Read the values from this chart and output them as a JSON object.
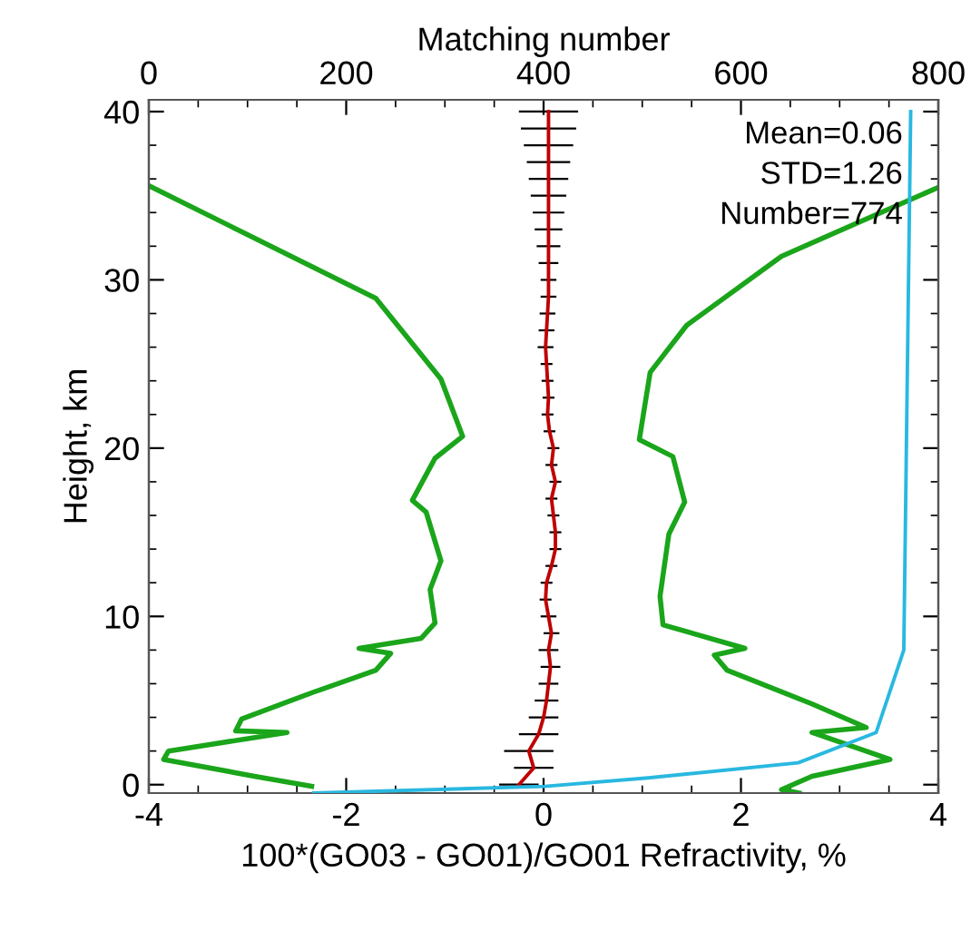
{
  "chart_data": {
    "type": "line",
    "xlabel": "100*(GO03 - GO01)/GO01 Refractivity, %",
    "ylabel": "Height, km",
    "x2label": "Matching number",
    "xlim": [
      -4,
      4
    ],
    "xticks": [
      -4,
      -2,
      0,
      2,
      4
    ],
    "ylim": [
      -0.5,
      40.7
    ],
    "yticks": [
      0,
      10,
      20,
      30,
      40
    ],
    "x2lim": [
      0,
      800
    ],
    "x2ticks": [
      0,
      200,
      400,
      600,
      800
    ],
    "annotations": [
      "Mean=0.06",
      "STD=1.26",
      "Number=774"
    ],
    "series": [
      {
        "color": "#1aa51a",
        "x": [
          -2.35,
          -2.93,
          -3.85,
          -3.8,
          -2.6,
          -3.12,
          -3.06,
          -2.33,
          -1.7,
          -1.55,
          -1.87,
          -1.24,
          -1.1,
          -1.15,
          -1.04,
          -1.19,
          -1.33,
          -1.1,
          -0.82,
          -1.04,
          -1.7,
          -4.0
        ],
        "values": [
          -0.1,
          0.5,
          1.5,
          2.0,
          3.1,
          3.2,
          3.9,
          5.5,
          6.8,
          7.8,
          8.1,
          8.7,
          9.6,
          11.6,
          13.3,
          16.2,
          16.9,
          19.4,
          20.7,
          24.1,
          28.9,
          35.6
        ]
      },
      {
        "color": "#1aa51a",
        "x": [
          2.59,
          2.41,
          2.72,
          3.51,
          2.72,
          3.27,
          2.72,
          1.86,
          1.73,
          2.04,
          1.21,
          1.18,
          1.27,
          1.43,
          1.31,
          0.97,
          1.08,
          1.45,
          2.41,
          4.0
        ],
        "values": [
          -0.5,
          -0.3,
          0.5,
          1.5,
          3.1,
          3.4,
          4.8,
          6.8,
          7.7,
          8.1,
          9.5,
          11.2,
          14.9,
          16.8,
          19.5,
          20.5,
          24.5,
          27.3,
          31.4,
          35.5
        ]
      },
      {
        "color": "#29b8e0",
        "axis": "x2",
        "x": [
          167,
          401,
          506,
          658,
          737,
          765,
          772
        ],
        "values": [
          -0.5,
          -0.1,
          0.4,
          1.3,
          3.1,
          8.0,
          40
        ]
      },
      {
        "color": "#c00000",
        "x": [
          -0.25,
          -0.1,
          -0.15,
          -0.05,
          0.0,
          0.03,
          0.05,
          0.07,
          0.05,
          0.08,
          0.05,
          0.02,
          0.03,
          0.08,
          0.12,
          0.12,
          0.1,
          0.08,
          0.12,
          0.08,
          0.1,
          0.06,
          0.04,
          0.05,
          0.04,
          0.03,
          0.02,
          0.03,
          0.04,
          0.05,
          0.05,
          0.05,
          0.05,
          0.05,
          0.05,
          0.05,
          0.05,
          0.05,
          0.05,
          0.05,
          0.05
        ],
        "values": [
          0,
          1,
          2,
          3,
          4,
          5,
          6,
          7,
          8,
          9,
          10,
          11,
          12,
          13,
          14,
          15,
          16,
          17,
          18,
          19,
          20,
          21,
          22,
          23,
          24,
          25,
          26,
          27,
          28,
          29,
          30,
          31,
          32,
          33,
          34,
          35,
          36,
          37,
          38,
          39,
          40
        ],
        "xerrors": [
          0.2,
          0.2,
          0.25,
          0.2,
          0.15,
          0.12,
          0.1,
          0.1,
          0.1,
          0.08,
          0.08,
          0.06,
          0.06,
          0.06,
          0.06,
          0.06,
          0.06,
          0.06,
          0.06,
          0.06,
          0.06,
          0.06,
          0.06,
          0.06,
          0.06,
          0.06,
          0.08,
          0.08,
          0.08,
          0.08,
          0.08,
          0.1,
          0.12,
          0.14,
          0.16,
          0.18,
          0.2,
          0.22,
          0.25,
          0.28,
          0.3
        ]
      }
    ]
  }
}
